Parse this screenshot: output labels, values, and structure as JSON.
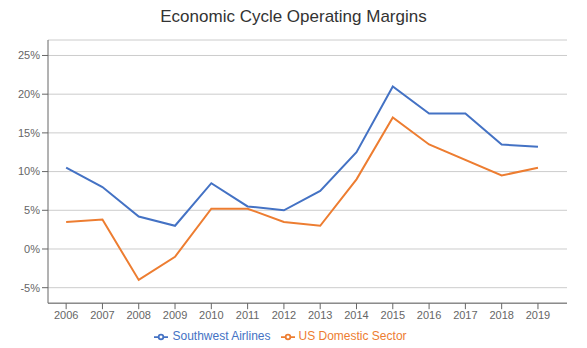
{
  "chart_data": {
    "type": "line",
    "title": "Economic Cycle Operating Margins",
    "x": [
      2006,
      2007,
      2008,
      2009,
      2010,
      2011,
      2012,
      2013,
      2014,
      2015,
      2016,
      2017,
      2018,
      2019
    ],
    "series": [
      {
        "name": "Southwest Airlines",
        "color": "#4472C4",
        "values": [
          10.5,
          8.0,
          4.2,
          3.0,
          8.5,
          5.5,
          5.0,
          7.5,
          12.5,
          21.0,
          17.5,
          17.5,
          13.5,
          13.2
        ]
      },
      {
        "name": "US Domestic Sector",
        "color": "#ED7D31",
        "values": [
          3.5,
          3.8,
          -4.0,
          -1.0,
          5.2,
          5.2,
          3.5,
          3.0,
          9.0,
          17.0,
          13.5,
          null,
          9.5,
          10.5
        ]
      }
    ],
    "xlim": [
      2005.5,
      2019.8
    ],
    "xticks": [
      2006,
      2007,
      2008,
      2009,
      2010,
      2011,
      2012,
      2013,
      2014,
      2015,
      2016,
      2017,
      2018,
      2019
    ],
    "ylim": [
      -7,
      27
    ],
    "yticks": [
      {
        "value": -5,
        "label": "-5%"
      },
      {
        "value": 0,
        "label": "0%"
      },
      {
        "value": 5,
        "label": "5%"
      },
      {
        "value": 10,
        "label": "10%"
      },
      {
        "value": 15,
        "label": "15%"
      },
      {
        "value": 20,
        "label": "20%"
      },
      {
        "value": 25,
        "label": "25%"
      }
    ],
    "grid": true,
    "legend": "bottom"
  }
}
